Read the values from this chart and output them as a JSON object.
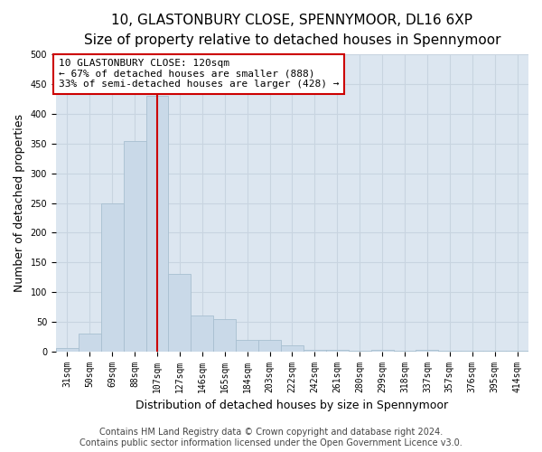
{
  "title_line1": "10, GLASTONBURY CLOSE, SPENNYMOOR, DL16 6XP",
  "title_line2": "Size of property relative to detached houses in Spennymoor",
  "xlabel": "Distribution of detached houses by size in Spennymoor",
  "ylabel": "Number of detached properties",
  "footer_line1": "Contains HM Land Registry data © Crown copyright and database right 2024.",
  "footer_line2": "Contains public sector information licensed under the Open Government Licence v3.0.",
  "annotation_line1": "10 GLASTONBURY CLOSE: 120sqm",
  "annotation_line2": "← 67% of detached houses are smaller (888)",
  "annotation_line3": "33% of semi-detached houses are larger (428) →",
  "bar_color": "#c9d9e8",
  "bar_edge_color": "#a8bfd0",
  "vline_color": "#cc0000",
  "annotation_box_edge_color": "#cc0000",
  "grid_color": "#c8d4e0",
  "background_color": "#dce6f0",
  "fig_background": "#ffffff",
  "categories": [
    "31sqm",
    "50sqm",
    "69sqm",
    "88sqm",
    "107sqm",
    "127sqm",
    "146sqm",
    "165sqm",
    "184sqm",
    "203sqm",
    "222sqm",
    "242sqm",
    "261sqm",
    "280sqm",
    "299sqm",
    "318sqm",
    "337sqm",
    "357sqm",
    "376sqm",
    "395sqm",
    "414sqm"
  ],
  "values": [
    5,
    30,
    250,
    355,
    430,
    130,
    60,
    55,
    20,
    20,
    10,
    3,
    2,
    1,
    3,
    1,
    2,
    1,
    1,
    1,
    1
  ],
  "ylim": [
    0,
    500
  ],
  "yticks": [
    0,
    50,
    100,
    150,
    200,
    250,
    300,
    350,
    400,
    450,
    500
  ],
  "vline_x": 4,
  "title_fontsize": 11,
  "subtitle_fontsize": 10,
  "label_fontsize": 9,
  "tick_fontsize": 7,
  "annotation_fontsize": 8,
  "footer_fontsize": 7
}
